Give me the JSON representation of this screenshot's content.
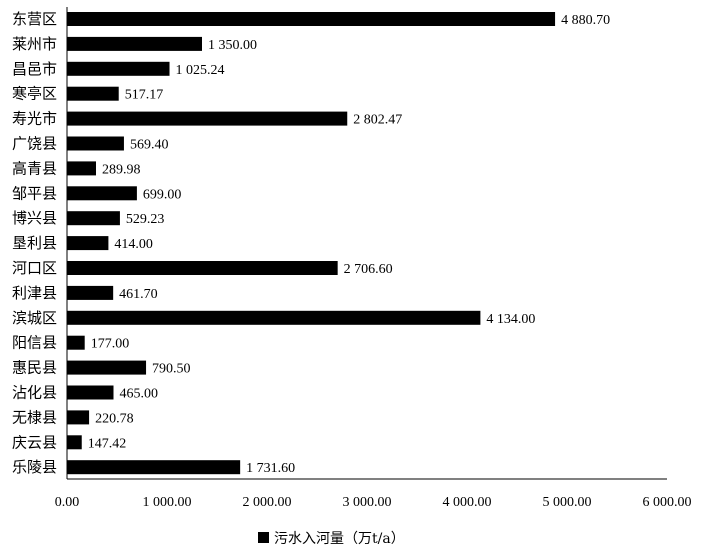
{
  "chart_data": {
    "type": "bar",
    "orientation": "horizontal",
    "categories": [
      "东营区",
      "莱州市",
      "昌邑市",
      "寒亭区",
      "寿光市",
      "广饶县",
      "高青县",
      "邹平县",
      "博兴县",
      "垦利县",
      "河口区",
      "利津县",
      "滨城区",
      "阳信县",
      "惠民县",
      "沾化县",
      "无棣县",
      "庆云县",
      "乐陵县"
    ],
    "series": [
      {
        "name": "污水入河量（万t/a）",
        "values": [
          4880.7,
          1350.0,
          1025.24,
          517.17,
          2802.47,
          569.4,
          289.98,
          699.0,
          529.23,
          414.0,
          2706.6,
          461.7,
          4134.0,
          177.0,
          790.5,
          465.0,
          220.78,
          147.42,
          1731.6
        ],
        "value_labels": [
          "4 880.70",
          "1 350.00",
          "1 025.24",
          "517.17",
          "2 802.47",
          "569.40",
          "289.98",
          "699.00",
          "529.23",
          "414.00",
          "2 706.60",
          "461.70",
          "4 134.00",
          "177.00",
          "790.50",
          "465.00",
          "220.78",
          "147.42",
          "1 731.60"
        ]
      }
    ],
    "xlim": [
      0,
      6000
    ],
    "x_ticks": [
      0,
      1000,
      2000,
      3000,
      4000,
      5000,
      6000
    ],
    "x_tick_labels": [
      "0.00",
      "1 000.00",
      "2 000.00",
      "3 000.00",
      "4 000.00",
      "5 000.00",
      "6 000.00"
    ],
    "grid": false,
    "legend": {
      "position": "bottom",
      "label": "污水入河量（万t/a）"
    },
    "bar_color": "#000000"
  }
}
